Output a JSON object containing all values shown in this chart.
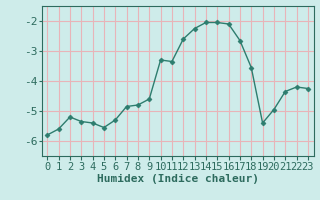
{
  "x": [
    0,
    1,
    2,
    3,
    4,
    5,
    6,
    7,
    8,
    9,
    10,
    11,
    12,
    13,
    14,
    15,
    16,
    17,
    18,
    19,
    20,
    21,
    22,
    23
  ],
  "y": [
    -5.8,
    -5.6,
    -5.2,
    -5.35,
    -5.4,
    -5.55,
    -5.3,
    -4.85,
    -4.8,
    -4.6,
    -3.3,
    -3.35,
    -2.6,
    -2.25,
    -2.05,
    -2.05,
    -2.1,
    -2.65,
    -3.55,
    -5.4,
    -4.95,
    -4.35,
    -4.2,
    -4.25
  ],
  "line_color": "#2d7d6e",
  "marker": "D",
  "marker_size": 2.5,
  "bg_color": "#ceecea",
  "grid_color": "#e8b4b8",
  "xlabel": "Humidex (Indice chaleur)",
  "xlim": [
    -0.5,
    23.5
  ],
  "ylim": [
    -6.5,
    -1.5
  ],
  "yticks": [
    -6,
    -5,
    -4,
    -3,
    -2
  ],
  "xticks": [
    0,
    1,
    2,
    3,
    4,
    5,
    6,
    7,
    8,
    9,
    10,
    11,
    12,
    13,
    14,
    15,
    16,
    17,
    18,
    19,
    20,
    21,
    22,
    23
  ],
  "font_color": "#2d6b5e",
  "xlabel_fontsize": 8,
  "tick_fontsize": 7.5,
  "ytick_fontsize": 8
}
